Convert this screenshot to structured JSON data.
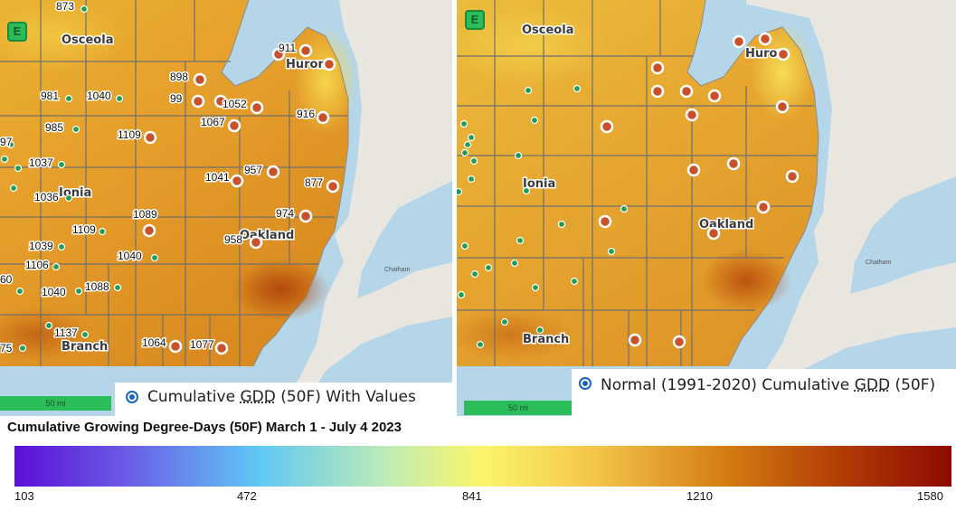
{
  "left_panel": {
    "e_button": "E",
    "scale": "50 mi",
    "layer_label_prefix": "Cumulative ",
    "layer_label_gdd": "GDD",
    "layer_label_suffix": " (50F) With Values",
    "places": {
      "osceola": "Osceola",
      "huron": "Huron",
      "ionia": "Ionia",
      "oakland": "Oakland",
      "branch": "Branch",
      "chatham": "Chatham"
    },
    "values": {
      "v873": "873",
      "v911": "911",
      "v898": "898",
      "v99x": "99",
      "v981": "981",
      "v1040a": "1040",
      "v1052": "1052",
      "v916": "916",
      "v1067": "1067",
      "v985": "985",
      "v97": "97",
      "v1109a": "1109",
      "v1037": "1037",
      "v957": "957",
      "v1041": "1041",
      "v877": "877",
      "v1036": "1036",
      "v1089": "1089",
      "v974": "974",
      "v1109b": "1109",
      "v958": "958",
      "v1039": "1039",
      "v1040b": "1040",
      "v1106": "1106",
      "v60": "60",
      "v1088": "1088",
      "v1040c": "1040",
      "v1137": "1137",
      "v75": "75",
      "v1064": "1064",
      "v1077": "1077"
    }
  },
  "right_panel": {
    "e_button": "E",
    "scale": "50 mi",
    "layer_label_prefix": "Normal (1991-2020) Cumulative ",
    "layer_label_gdd": "GDD",
    "layer_label_suffix": " (50F)",
    "places": {
      "osceola": "Osceola",
      "huron": "Huron",
      "ionia": "Ionia",
      "oakland": "Oakland",
      "branch": "Branch",
      "chatham": "Chatham"
    }
  },
  "colorbar": {
    "title": "Cumulative Growing Degree-Days (50F) March 1 - July 4 2023",
    "ticks": [
      "103",
      "472",
      "841",
      "1210",
      "1580"
    ],
    "colors": [
      "#5b0fd6",
      "#5fc8f4",
      "#fbf569",
      "#d47c12",
      "#8e0a02"
    ]
  },
  "colors": {
    "water": "#b5d6e8",
    "land": "#e9e6df",
    "station_green": "#1f9d55",
    "station_red": "#c8502a"
  }
}
